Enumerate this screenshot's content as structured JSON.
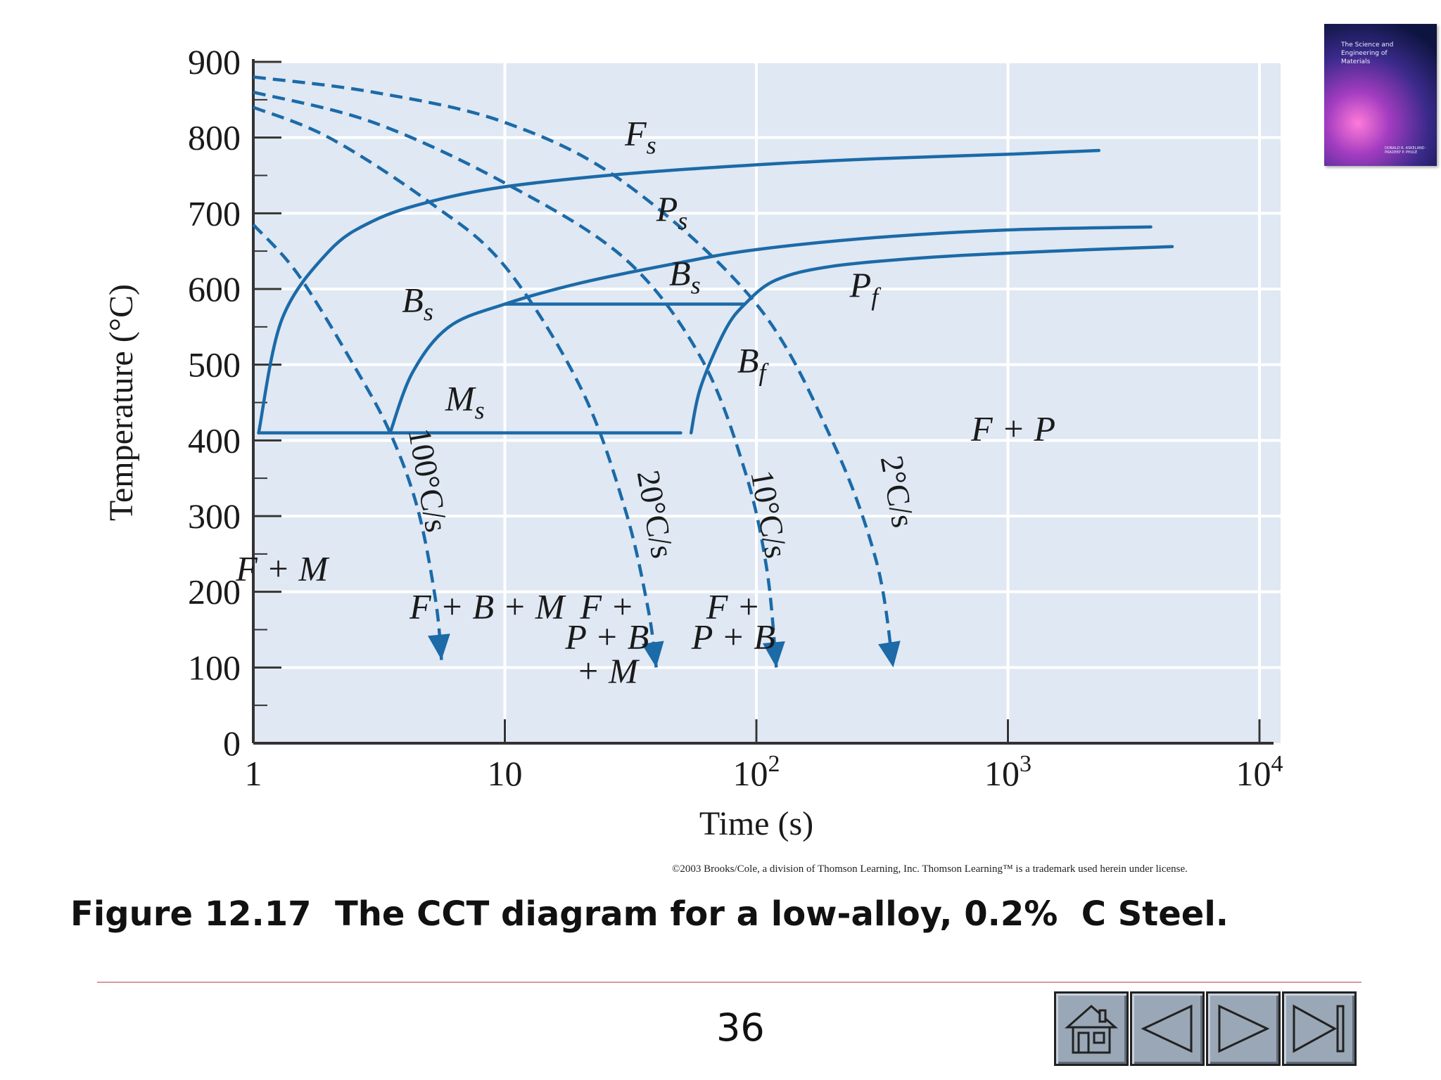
{
  "chart_data": {
    "type": "line",
    "title": "",
    "xlabel": "Time (s)",
    "ylabel": "Temperature (°C)",
    "x_scale": "log",
    "xlim": [
      1,
      10000
    ],
    "ylim": [
      0,
      900
    ],
    "x_ticks": [
      1,
      10,
      100,
      1000,
      10000
    ],
    "x_tick_labels": [
      {
        "base": "1",
        "exp": ""
      },
      {
        "base": "10",
        "exp": ""
      },
      {
        "base": "10",
        "exp": "2"
      },
      {
        "base": "10",
        "exp": "3"
      },
      {
        "base": "10",
        "exp": "4"
      }
    ],
    "y_ticks": [
      0,
      100,
      200,
      300,
      400,
      500,
      600,
      700,
      800,
      900
    ],
    "y_tick_labels": [
      "0",
      "100",
      "200",
      "300",
      "400",
      "500",
      "600",
      "700",
      "800",
      "900"
    ],
    "grid": true,
    "transformation_curves": [
      {
        "name": "F_s",
        "x": [
          1.05,
          1.3,
          2.0,
          3.0,
          5,
          10,
          30,
          100,
          300,
          1000,
          2300
        ],
        "y": [
          410,
          560,
          650,
          690,
          715,
          735,
          752,
          764,
          772,
          778,
          783
        ]
      },
      {
        "name": "P_s",
        "x": [
          3.5,
          4.3,
          6,
          10,
          20,
          50,
          100,
          300,
          1000,
          3700
        ],
        "y": [
          410,
          490,
          550,
          580,
          608,
          635,
          652,
          668,
          678,
          682
        ]
      },
      {
        "name": "B_s",
        "x": [
          10,
          90
        ],
        "y": [
          580,
          580
        ]
      },
      {
        "name": "P_f",
        "x": [
          55,
          60,
          75,
          90,
          120,
          200,
          500,
          1500,
          4500
        ],
        "y": [
          410,
          470,
          545,
          580,
          612,
          630,
          642,
          650,
          656
        ]
      },
      {
        "name": "M_s",
        "x": [
          1.05,
          50
        ],
        "y": [
          410,
          410
        ]
      }
    ],
    "cooling_curves": [
      {
        "name": "100°C/s",
        "x": [
          1.0,
          1.5,
          2.5,
          3.5,
          4.5,
          5.3,
          5.6
        ],
        "y": [
          685,
          620,
          500,
          410,
          310,
          190,
          110
        ]
      },
      {
        "name": "20°C/s",
        "x": [
          1.0,
          2,
          5,
          10,
          20,
          30,
          37,
          40
        ],
        "y": [
          840,
          800,
          715,
          630,
          470,
          310,
          180,
          100
        ]
      },
      {
        "name": "10°C/s",
        "x": [
          1.0,
          3,
          10,
          30,
          60,
          90,
          110,
          120
        ],
        "y": [
          860,
          820,
          740,
          640,
          510,
          360,
          230,
          100
        ]
      },
      {
        "name": "2°C/s",
        "x": [
          1.0,
          3,
          10,
          30,
          100,
          200,
          300,
          350
        ],
        "y": [
          880,
          860,
          820,
          740,
          580,
          400,
          240,
          100
        ]
      }
    ],
    "curve_labels": [
      {
        "text": "F",
        "sub": "s",
        "x": 30,
        "y": 790
      },
      {
        "text": "P",
        "sub": "s",
        "x": 40,
        "y": 690
      },
      {
        "text": "B",
        "sub": "s",
        "x": 3.9,
        "y": 570
      },
      {
        "text": "B",
        "sub": "s",
        "x": 45,
        "y": 605
      },
      {
        "text": "P",
        "sub": "f",
        "x": 235,
        "y": 590
      },
      {
        "text": "B",
        "sub": "f",
        "x": 84,
        "y": 490
      },
      {
        "text": "M",
        "sub": "s",
        "x": 5.8,
        "y": 440
      }
    ],
    "region_labels": [
      {
        "text": "F + P",
        "x": 1050,
        "y": 400
      },
      {
        "text": "F + M",
        "x": 1.3,
        "y": 215
      },
      {
        "text": "F + B + M",
        "x": 8.5,
        "y": 165
      },
      {
        "text": "F +",
        "x": 25.5,
        "y": 165
      },
      {
        "text": "P + B",
        "x": 25.5,
        "y": 125
      },
      {
        "text": "+ M",
        "x": 25.5,
        "y": 80
      },
      {
        "text": "F +",
        "x": 81,
        "y": 165
      },
      {
        "text": "P + B",
        "x": 81,
        "y": 125
      }
    ],
    "rate_labels": [
      {
        "text": "100°C/s",
        "x": 4.5,
        "y": 345
      },
      {
        "text": "20°C/s",
        "x": 36,
        "y": 300
      },
      {
        "text": "10°C/s",
        "x": 102,
        "y": 300
      },
      {
        "text": "2°C/s",
        "x": 330,
        "y": 330
      }
    ]
  },
  "copyright": "©2003 Brooks/Cole, a division of Thomson Learning, Inc.  Thomson Learning™ is a trademark used herein under license.",
  "caption": "Figure 12.17  The CCT diagram for a low-alloy, 0.2%  C Steel.",
  "page_number": "36",
  "book_cover": {
    "title": "The Science and Engineering of Materials",
    "authors": "DONALD R. ASKELAND · PRADEEP P. PHULÉ"
  },
  "colors": {
    "plot_bg": "#dfe8f3",
    "curve": "#1c6aa8",
    "grid": "#ffffff",
    "axis": "#333333"
  },
  "icons": {
    "home": "home-icon",
    "previous": "triangle-left-icon",
    "next": "triangle-right-icon",
    "last": "skip-to-end-icon"
  }
}
